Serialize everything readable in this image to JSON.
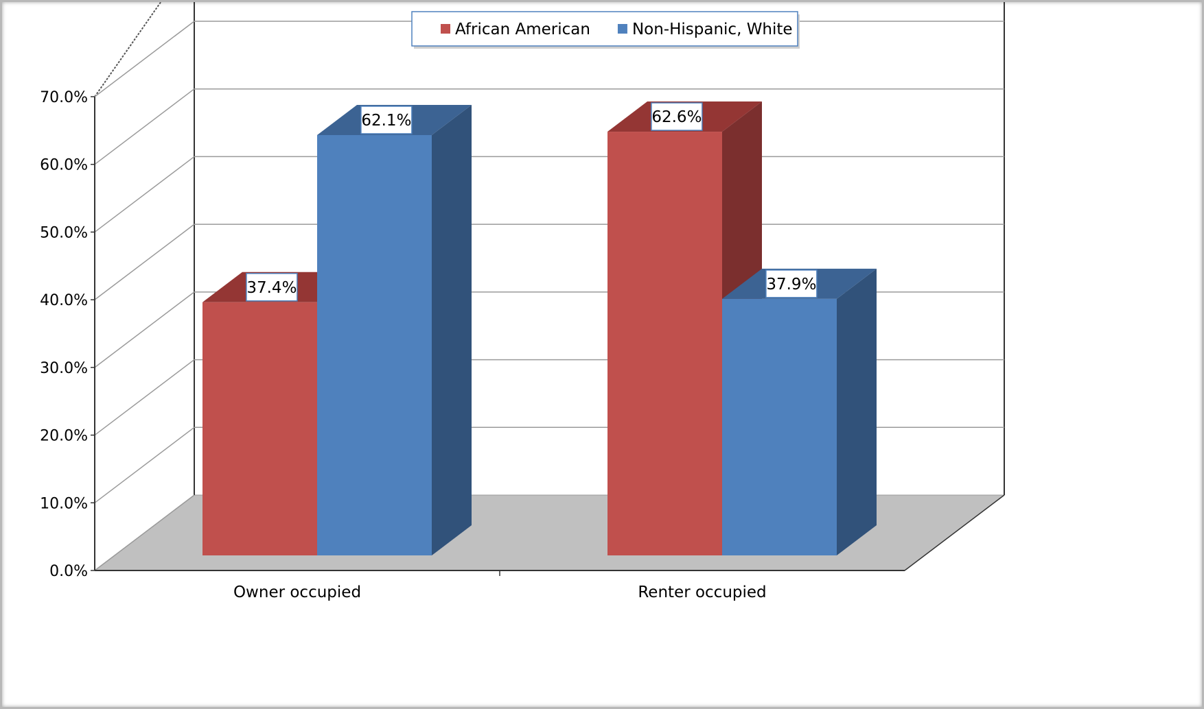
{
  "chart_data": {
    "type": "bar",
    "title": "",
    "xlabel": "",
    "ylabel": "",
    "categories": [
      "Owner occupied",
      "Renter occupied"
    ],
    "series": [
      {
        "name": "African American",
        "values": [
          37.4,
          62.6
        ],
        "labels": [
          "37.4%",
          "62.6%"
        ],
        "color": "#c0504d",
        "side_color": "#7b2f2e",
        "top_color": "#943634"
      },
      {
        "name": "Non-Hispanic, White",
        "values": [
          62.1,
          37.9
        ],
        "labels": [
          "62.1%",
          "37.9%"
        ],
        "color": "#4f81bd",
        "side_color": "#31527a",
        "top_color": "#3c6393"
      }
    ],
    "ylim": [
      0,
      70
    ],
    "yticks": [
      0,
      10,
      20,
      30,
      40,
      50,
      60,
      70
    ],
    "ytick_labels": [
      "0.0%",
      "10.0%",
      "20.0%",
      "30.0%",
      "40.0%",
      "50.0%",
      "60.0%",
      "70.0%"
    ],
    "grid": true,
    "legend_position": "top-center",
    "floor_color": "#c0c0c0"
  }
}
